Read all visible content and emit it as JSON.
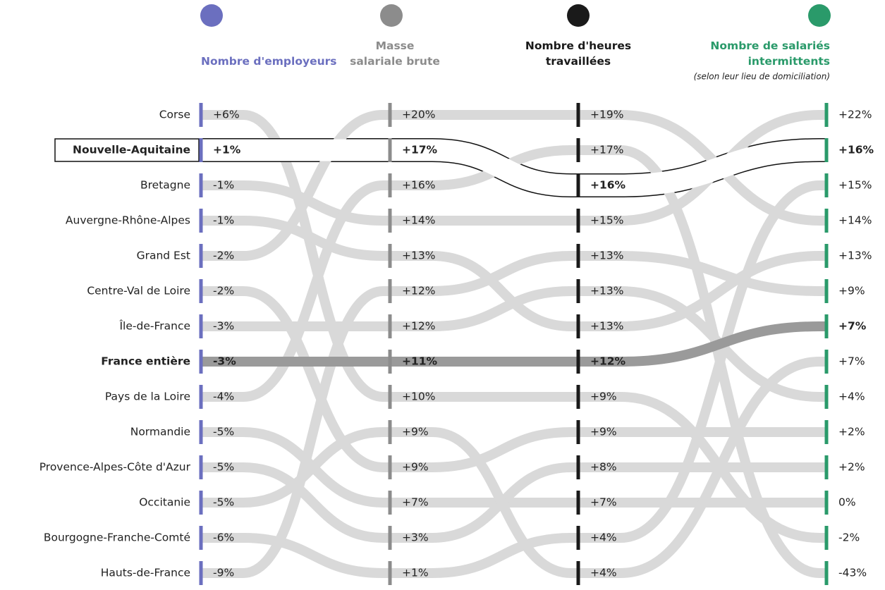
{
  "chart_data": {
    "type": "bump",
    "categories": [
      "Corse",
      "Nouvelle-Aquitaine",
      "Bretagne",
      "Auvergne-Rhône-Alpes",
      "Grand Est",
      "Centre-Val de Loire",
      "Île-de-France",
      "France entière",
      "Pays de la Loire",
      "Normandie",
      "Provence-Alpes-Côte d'Azur",
      "Occitanie",
      "Bourgogne-Franche-Comté",
      "Hauts-de-France"
    ],
    "highlight": "Nouvelle-Aquitaine",
    "emphasis": "France entière",
    "negative_color": "#d42b2b",
    "columns": [
      {
        "name": "Nombre d'employeurs",
        "color": "#6b6fbf",
        "order": [
          "Corse",
          "Nouvelle-Aquitaine",
          "Bretagne",
          "Auvergne-Rhône-Alpes",
          "Grand Est",
          "Centre-Val de Loire",
          "Île-de-France",
          "France entière",
          "Pays de la Loire",
          "Normandie",
          "Provence-Alpes-Côte d'Azur",
          "Occitanie",
          "Bourgogne-Franche-Comté",
          "Hauts-de-France"
        ],
        "values": [
          6,
          1,
          -1,
          -1,
          -2,
          -2,
          -3,
          -3,
          -4,
          -5,
          -5,
          -5,
          -6,
          -9
        ],
        "value_labels": [
          "+6%",
          "+1%",
          "-1%",
          "-1%",
          "-2%",
          "-2%",
          "-3%",
          "-3%",
          "-4%",
          "-5%",
          "-5%",
          "-5%",
          "-6%",
          "-9%"
        ]
      },
      {
        "name": "Masse salariale brute",
        "color": "#8c8c8c",
        "order": [
          "Grand Est",
          "Nouvelle-Aquitaine",
          "Pays de la Loire",
          "Bretagne",
          "Auvergne-Rhône-Alpes",
          "Hauts-de-France",
          "Île-de-France",
          "France entière",
          "Corse",
          "Occitanie",
          "Centre-Val de Loire",
          "Normandie",
          "Provence-Alpes-Côte d'Azur",
          "Bourgogne-Franche-Comté"
        ],
        "values": [
          20,
          17,
          16,
          14,
          13,
          12,
          12,
          11,
          10,
          9,
          9,
          7,
          3,
          1
        ],
        "value_labels": [
          "+20%",
          "+17%",
          "+16%",
          "+14%",
          "+13%",
          "+12%",
          "+12%",
          "+11%",
          "+10%",
          "+9%",
          "+9%",
          "+7%",
          "+3%",
          "+1%"
        ]
      },
      {
        "name": "Nombre d'heures travaillées",
        "color": "#1a1a1a",
        "order": [
          "Grand Est",
          "Pays de la Loire",
          "Nouvelle-Aquitaine",
          "Bretagne",
          "Hauts-de-France",
          "Île-de-France",
          "Auvergne-Rhône-Alpes",
          "France entière",
          "Corse",
          "Centre-Val de Loire",
          "Provence-Alpes-Côte d'Azur",
          "Normandie",
          "Bourgogne-Franche-Comté",
          "Occitanie"
        ],
        "values": [
          19,
          17,
          16,
          15,
          13,
          13,
          13,
          12,
          9,
          9,
          8,
          7,
          4,
          4
        ],
        "value_labels": [
          "+19%",
          "+17%",
          "+16%",
          "+15%",
          "+13%",
          "+13%",
          "+13%",
          "+12%",
          "+9%",
          "+9%",
          "+8%",
          "+7%",
          "+4%",
          "+4%"
        ]
      },
      {
        "name": "Nombre de salariés intermittents",
        "note": "(selon leur lieu de domiciliation)",
        "color": "#2a9a6a",
        "order": [
          "Bretagne",
          "Nouvelle-Aquitaine",
          "Bourgogne-Franche-Comté",
          "Grand Est",
          "Auvergne-Rhône-Alpes",
          "Hauts-de-France",
          "France entière",
          "Occitanie",
          "Île-de-France",
          "Centre-Val de Loire",
          "Provence-Alpes-Côte d'Azur",
          "Normandie",
          "Corse",
          "Pays de la Loire"
        ],
        "values": [
          22,
          16,
          15,
          14,
          13,
          9,
          7,
          7,
          4,
          2,
          2,
          0,
          -2,
          -43
        ],
        "value_labels": [
          "+22%",
          "+16%",
          "+15%",
          "+14%",
          "+13%",
          "+9%",
          "+7%",
          "+7%",
          "+4%",
          "+2%",
          "+2%",
          "0%",
          "-2%",
          "-43%"
        ]
      }
    ]
  }
}
